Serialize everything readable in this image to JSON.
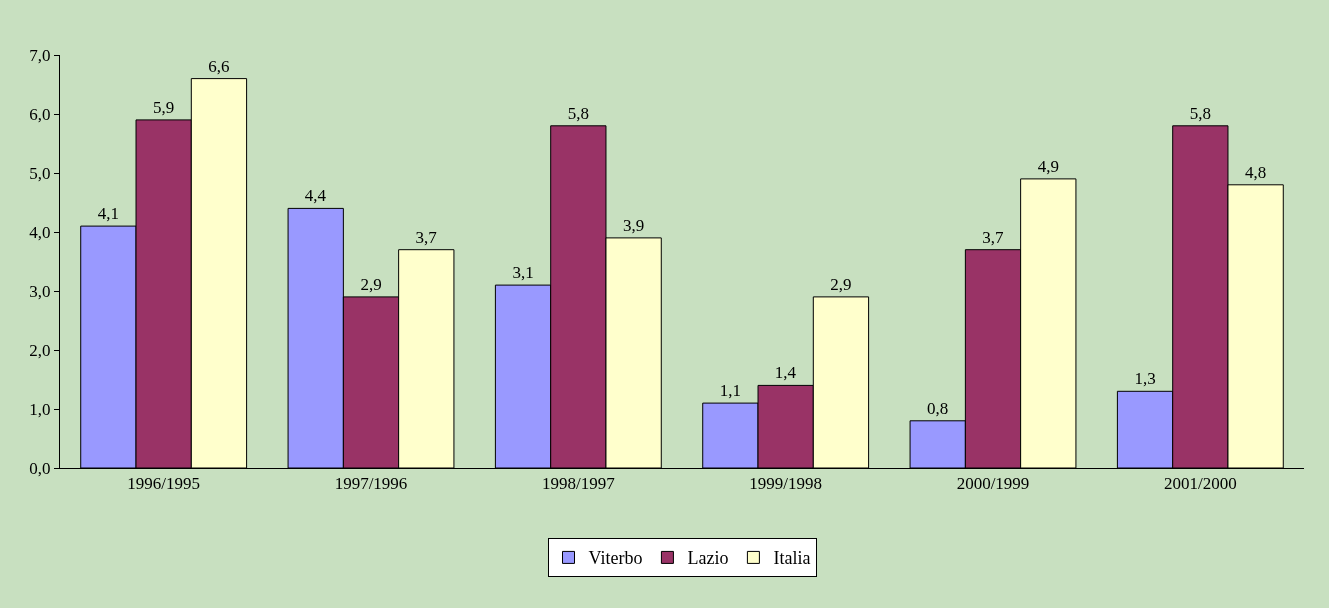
{
  "chart_data": {
    "type": "bar",
    "categories": [
      "1996/1995",
      "1997/1996",
      "1998/1997",
      "1999/1998",
      "2000/1999",
      "2001/2000"
    ],
    "series": [
      {
        "name": "Viterbo",
        "color": "#9999ff",
        "values": [
          4.1,
          4.4,
          3.1,
          1.1,
          0.8,
          1.3
        ],
        "value_labels": [
          "4,1",
          "4,4",
          "3,1",
          "1,1",
          "0,8",
          "1,3"
        ]
      },
      {
        "name": "Lazio",
        "color": "#993366",
        "values": [
          5.9,
          2.9,
          5.8,
          1.4,
          3.7,
          5.8
        ],
        "value_labels": [
          "5,9",
          "2,9",
          "5,8",
          "1,4",
          "3,7",
          "5,8"
        ]
      },
      {
        "name": "Italia",
        "color": "#ffffcc",
        "values": [
          6.6,
          3.7,
          3.9,
          2.9,
          4.9,
          4.8
        ],
        "value_labels": [
          "6,6",
          "3,7",
          "3,9",
          "2,9",
          "4,9",
          "4,8"
        ]
      }
    ],
    "ylim": [
      0,
      7
    ],
    "yticks": [
      {
        "value": 0,
        "label": "0,0"
      },
      {
        "value": 1,
        "label": "1,0"
      },
      {
        "value": 2,
        "label": "2,0"
      },
      {
        "value": 3,
        "label": "3,0"
      },
      {
        "value": 4,
        "label": "4,0"
      },
      {
        "value": 5,
        "label": "5,0"
      },
      {
        "value": 6,
        "label": "6,0"
      },
      {
        "value": 7,
        "label": "7,0"
      }
    ],
    "grid": false,
    "legend": "bottom"
  }
}
